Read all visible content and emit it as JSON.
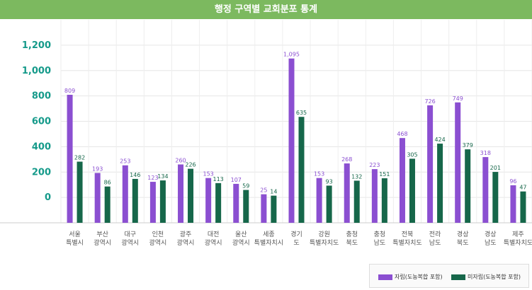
{
  "chart_data": {
    "type": "bar",
    "title": "행정 구역별 교회분포 통계",
    "categories": [
      [
        "서울",
        "특별시"
      ],
      [
        "부산",
        "광역시"
      ],
      [
        "대구",
        "광역시"
      ],
      [
        "인천",
        "광역시"
      ],
      [
        "광주",
        "광역시"
      ],
      [
        "대전",
        "광역시"
      ],
      [
        "울산",
        "광역시"
      ],
      [
        "세종",
        "특별자치시"
      ],
      [
        "경기",
        "도"
      ],
      [
        "강원",
        "특별자치도"
      ],
      [
        "충청",
        "북도"
      ],
      [
        "충청",
        "남도"
      ],
      [
        "전북",
        "특별자치도"
      ],
      [
        "전라",
        "남도"
      ],
      [
        "경상",
        "북도"
      ],
      [
        "경상",
        "남도"
      ],
      [
        "제주",
        "특별자치도"
      ]
    ],
    "series": [
      {
        "name": "자립(도농복합 포함)",
        "color": "#8b4fd1",
        "values": [
          809,
          193,
          253,
          123,
          260,
          153,
          107,
          25,
          1095,
          153,
          268,
          223,
          468,
          726,
          749,
          318,
          96
        ]
      },
      {
        "name": "미자립(도농복합 포함)",
        "color": "#16674a",
        "values": [
          282,
          86,
          146,
          134,
          226,
          113,
          59,
          14,
          635,
          93,
          132,
          151,
          305,
          424,
          379,
          201,
          47
        ]
      }
    ],
    "yticks": [
      "0",
      "200",
      "400",
      "600",
      "800",
      "1,000",
      "1,200"
    ],
    "ytick_values": [
      0,
      200,
      400,
      600,
      800,
      1000,
      1200
    ],
    "ylim": [
      -200,
      1400
    ],
    "grid": true,
    "legend_position": "bottom-right"
  }
}
